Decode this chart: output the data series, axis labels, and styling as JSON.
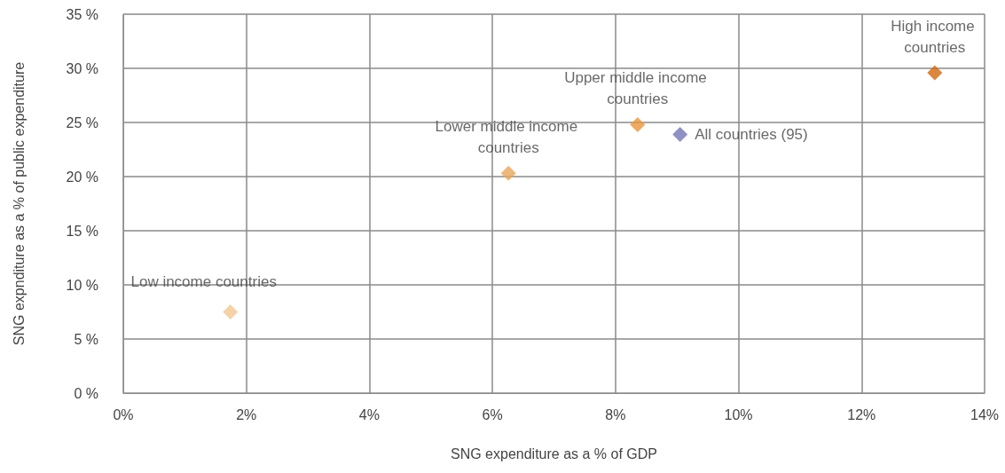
{
  "chart_data": {
    "type": "scatter",
    "xlabel": "SNG expenditure as a % of GDP",
    "ylabel": "SNG expnditure as a % of public expenditure",
    "series": [
      {
        "name": "Low income countries",
        "color": "#f2c894",
        "x": [
          1.74
        ],
        "values": [
          7.5
        ]
      },
      {
        "name": "Lower middle income countries",
        "color": "#eaa55a",
        "x": [
          6.26
        ],
        "values": [
          20.3
        ]
      },
      {
        "name": "Upper middle income countries",
        "color": "#e8953a",
        "x": [
          8.36
        ],
        "values": [
          24.8
        ]
      },
      {
        "name": "All countries (95)",
        "color": "#7375b5",
        "x": [
          9.05
        ],
        "values": [
          23.9
        ]
      },
      {
        "name": "High income countries",
        "color": "#d2690e",
        "x": [
          13.19
        ],
        "values": [
          29.6
        ]
      }
    ],
    "xlim": [
      0,
      14
    ],
    "xticks": [
      {
        "value": 0,
        "label": "0%"
      },
      {
        "value": 2,
        "label": "2%"
      },
      {
        "value": 4,
        "label": "4%"
      },
      {
        "value": 6,
        "label": "6%"
      },
      {
        "value": 8,
        "label": "8%"
      },
      {
        "value": 10,
        "label": "10%"
      },
      {
        "value": 12,
        "label": "12%"
      },
      {
        "value": 14,
        "label": "14%"
      }
    ],
    "ylim": [
      0,
      35
    ],
    "yticks": [
      {
        "value": 0,
        "label": "0 %"
      },
      {
        "value": 5,
        "label": "5 %"
      },
      {
        "value": 10,
        "label": "10 %"
      },
      {
        "value": 15,
        "label": "15 %"
      },
      {
        "value": 20,
        "label": "20 %"
      },
      {
        "value": 25,
        "label": "25 %"
      },
      {
        "value": 30,
        "label": "30 %"
      },
      {
        "value": 35,
        "label": "35 %"
      }
    ],
    "grid": true,
    "legend": false,
    "marker": "diamond"
  }
}
